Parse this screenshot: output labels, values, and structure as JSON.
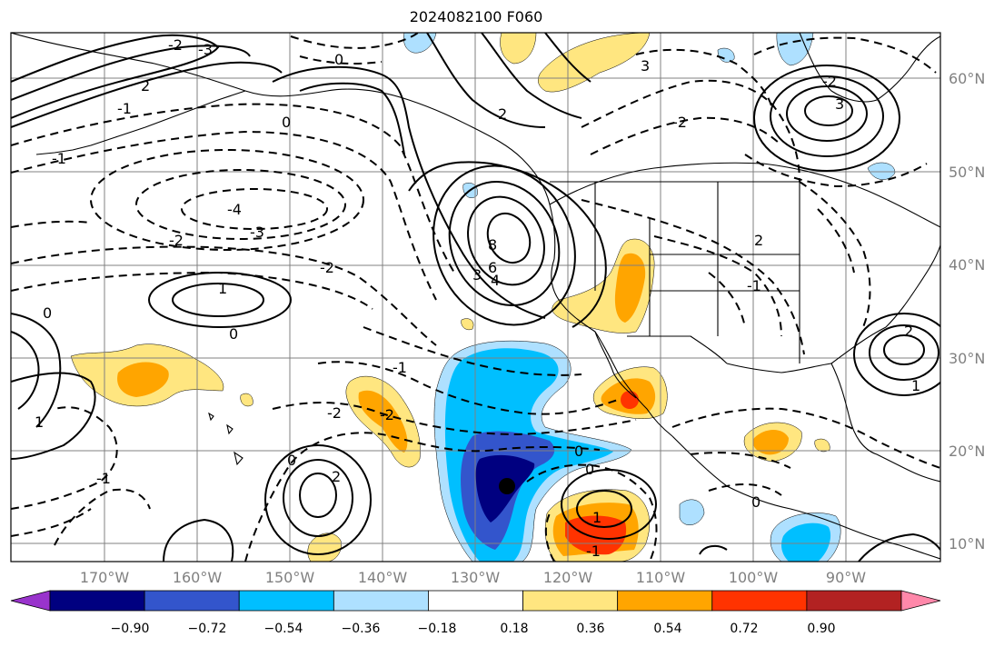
{
  "map": {
    "title": "2024082100 F060",
    "lat_ticks": [
      "60°N",
      "50°N",
      "40°N",
      "30°N",
      "20°N",
      "10°N"
    ],
    "lon_ticks": [
      "170°W",
      "160°W",
      "150°W",
      "140°W",
      "130°W",
      "120°W",
      "110°W",
      "100°W",
      "90°W"
    ],
    "colorbar": {
      "tick_labels": [
        "−0.90",
        "−0.72",
        "−0.54",
        "−0.36",
        "−0.18",
        "0.18",
        "0.36",
        "0.54",
        "0.72",
        "0.90"
      ],
      "colors": [
        "#9933cc",
        "#000080",
        "#3355cc",
        "#00bfff",
        "#aee0ff",
        "#ffffff",
        "#ffe680",
        "#ffa500",
        "#ff3300",
        "#b22222",
        "#ff88aa"
      ]
    },
    "contour_labels": [
      "0",
      "-1",
      "-2",
      "-3",
      "-4",
      "1",
      "2",
      "3",
      "4",
      "6",
      "8",
      "-1",
      "-2",
      "0",
      "1",
      "-1",
      "0",
      "2",
      "-2",
      "0",
      "3",
      "1",
      "0",
      "-2",
      "-1",
      "2",
      "-2",
      "0",
      "1",
      "0",
      "-1",
      "2",
      "0",
      "-2",
      "2",
      "-1",
      "3",
      "-3",
      "-2"
    ],
    "colors": {
      "title": "#000000",
      "axis_label": "#808080",
      "frame": "#000000"
    }
  }
}
